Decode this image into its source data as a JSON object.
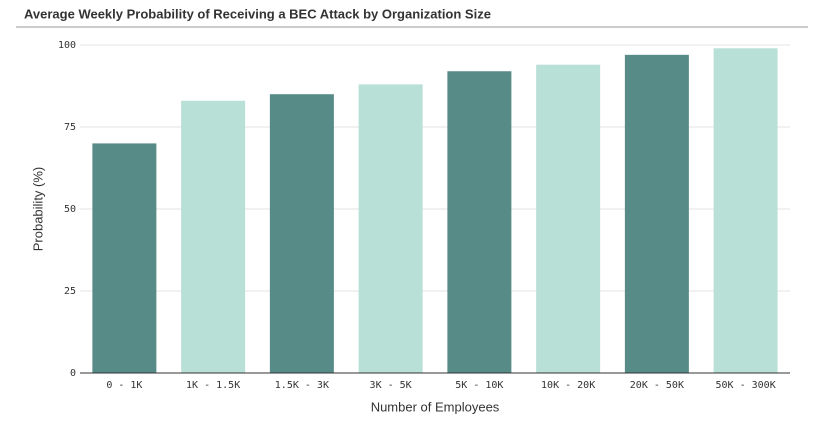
{
  "chart_data": {
    "type": "bar",
    "title": "Average Weekly Probability of Receiving a BEC Attack by Organization Size",
    "x_label": "Number of Employees",
    "y_label": "Probability (%)",
    "categories": [
      "0 - 1K",
      "1K - 1.5K",
      "1.5K - 3K",
      "3K - 5K",
      "5K - 10K",
      "10K - 20K",
      "20K - 50K",
      "50K - 300K"
    ],
    "values": [
      70,
      83,
      85,
      88,
      92,
      94,
      97,
      99
    ],
    "colors": [
      "#578b88",
      "#b9e0d7",
      "#578b88",
      "#b9e0d7",
      "#578b88",
      "#b9e0d7",
      "#578b88",
      "#b9e0d7"
    ],
    "ylim": [
      0,
      100
    ],
    "yticks": [
      0,
      25,
      50,
      75,
      100
    ],
    "grid": true
  }
}
